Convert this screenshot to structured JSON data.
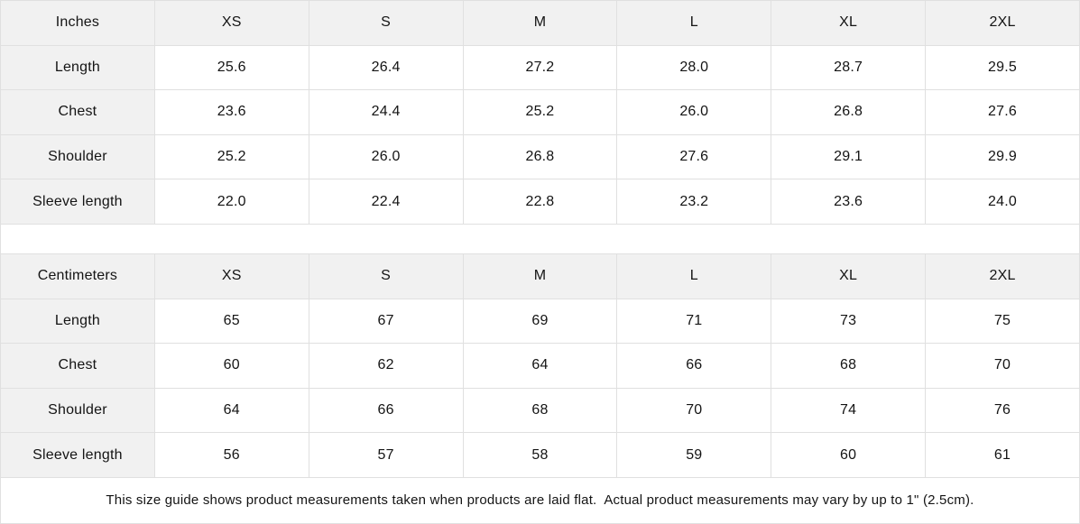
{
  "tables": [
    {
      "unit_label": "Inches",
      "sizes": [
        "XS",
        "S",
        "M",
        "L",
        "XL",
        "2XL"
      ],
      "rows": [
        {
          "label": "Length",
          "values": [
            "25.6",
            "26.4",
            "27.2",
            "28.0",
            "28.7",
            "29.5"
          ]
        },
        {
          "label": "Chest",
          "values": [
            "23.6",
            "24.4",
            "25.2",
            "26.0",
            "26.8",
            "27.6"
          ]
        },
        {
          "label": "Shoulder",
          "values": [
            "25.2",
            "26.0",
            "26.8",
            "27.6",
            "29.1",
            "29.9"
          ]
        },
        {
          "label": "Sleeve length",
          "values": [
            "22.0",
            "22.4",
            "22.8",
            "23.2",
            "23.6",
            "24.0"
          ]
        }
      ]
    },
    {
      "unit_label": "Centimeters",
      "sizes": [
        "XS",
        "S",
        "M",
        "L",
        "XL",
        "2XL"
      ],
      "rows": [
        {
          "label": "Length",
          "values": [
            "65",
            "67",
            "69",
            "71",
            "73",
            "75"
          ]
        },
        {
          "label": "Chest",
          "values": [
            "60",
            "62",
            "64",
            "66",
            "68",
            "70"
          ]
        },
        {
          "label": "Shoulder",
          "values": [
            "64",
            "66",
            "68",
            "70",
            "74",
            "76"
          ]
        },
        {
          "label": "Sleeve length",
          "values": [
            "56",
            "57",
            "58",
            "59",
            "60",
            "61"
          ]
        }
      ]
    }
  ],
  "footer": {
    "note": "This size guide shows product measurements taken when products are laid flat.  Actual product measurements may vary by up to 1\" (2.5cm)."
  },
  "colors": {
    "header_bg": "#f1f1f1",
    "cell_bg": "#ffffff",
    "border": "#e0e0e0",
    "text": "#141414"
  }
}
